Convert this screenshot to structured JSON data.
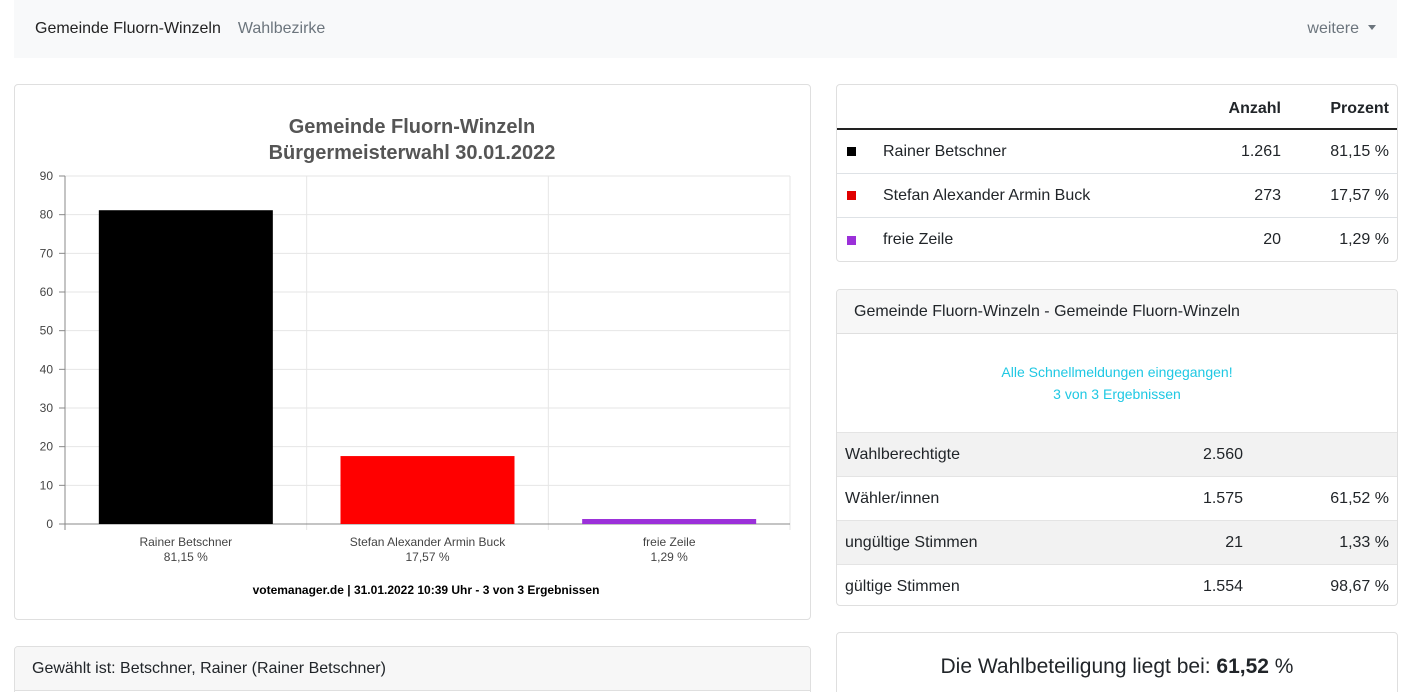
{
  "navbar": {
    "brand": "Gemeinde Fluorn-Winzeln",
    "link": "Wahlbezirke",
    "more": "weitere"
  },
  "chart_data": {
    "type": "bar",
    "title": "Gemeinde Fluorn-Winzeln",
    "subtitle": "Bürgermeisterwahl 30.01.2022",
    "categories": [
      "Rainer Betschner",
      "Stefan Alexander Armin Buck",
      "freie Zeile"
    ],
    "percent_labels": [
      "81,15 %",
      "17,57 %",
      "1,29 %"
    ],
    "values": [
      81.15,
      17.57,
      1.29
    ],
    "colors": [
      "#000000",
      "#ff0000",
      "#9b30d9"
    ],
    "ylim": [
      0,
      90
    ],
    "yticks": [
      0,
      10,
      20,
      30,
      40,
      50,
      60,
      70,
      80,
      90
    ],
    "grid": true,
    "footer": "votemanager.de | 31.01.2022 10:39 Uhr - 3 von 3 Ergebnissen"
  },
  "results": {
    "col_count": "Anzahl",
    "col_percent": "Prozent",
    "rows": [
      {
        "color": "#000000",
        "name": "Rainer Betschner",
        "count": "1.261",
        "percent": "81,15 %"
      },
      {
        "color": "#e00000",
        "name": "Stefan Alexander Armin Buck",
        "count": "273",
        "percent": "17,57 %"
      },
      {
        "color": "#9b30d9",
        "name": "freie Zeile",
        "count": "20",
        "percent": "1,29 %"
      }
    ]
  },
  "stats": {
    "header": "Gemeinde Fluorn-Winzeln - Gemeinde Fluorn-Winzeln",
    "status_line1": "Alle Schnellmeldungen eingegangen!",
    "status_line2": "3 von 3 Ergebnissen",
    "rows": [
      {
        "label": "Wahlberechtigte",
        "value": "2.560",
        "percent": ""
      },
      {
        "label": "Wähler/innen",
        "value": "1.575",
        "percent": "61,52 %"
      },
      {
        "label": "ungültige Stimmen",
        "value": "21",
        "percent": "1,33 %"
      },
      {
        "label": "gültige Stimmen",
        "value": "1.554",
        "percent": "98,67 %"
      }
    ]
  },
  "elected": {
    "text": "Gewählt ist: Betschner, Rainer (Rainer Betschner)"
  },
  "turnout": {
    "prefix": "Die Wahlbeteiligung liegt bei: ",
    "value": "61,52",
    "suffix": " %"
  }
}
